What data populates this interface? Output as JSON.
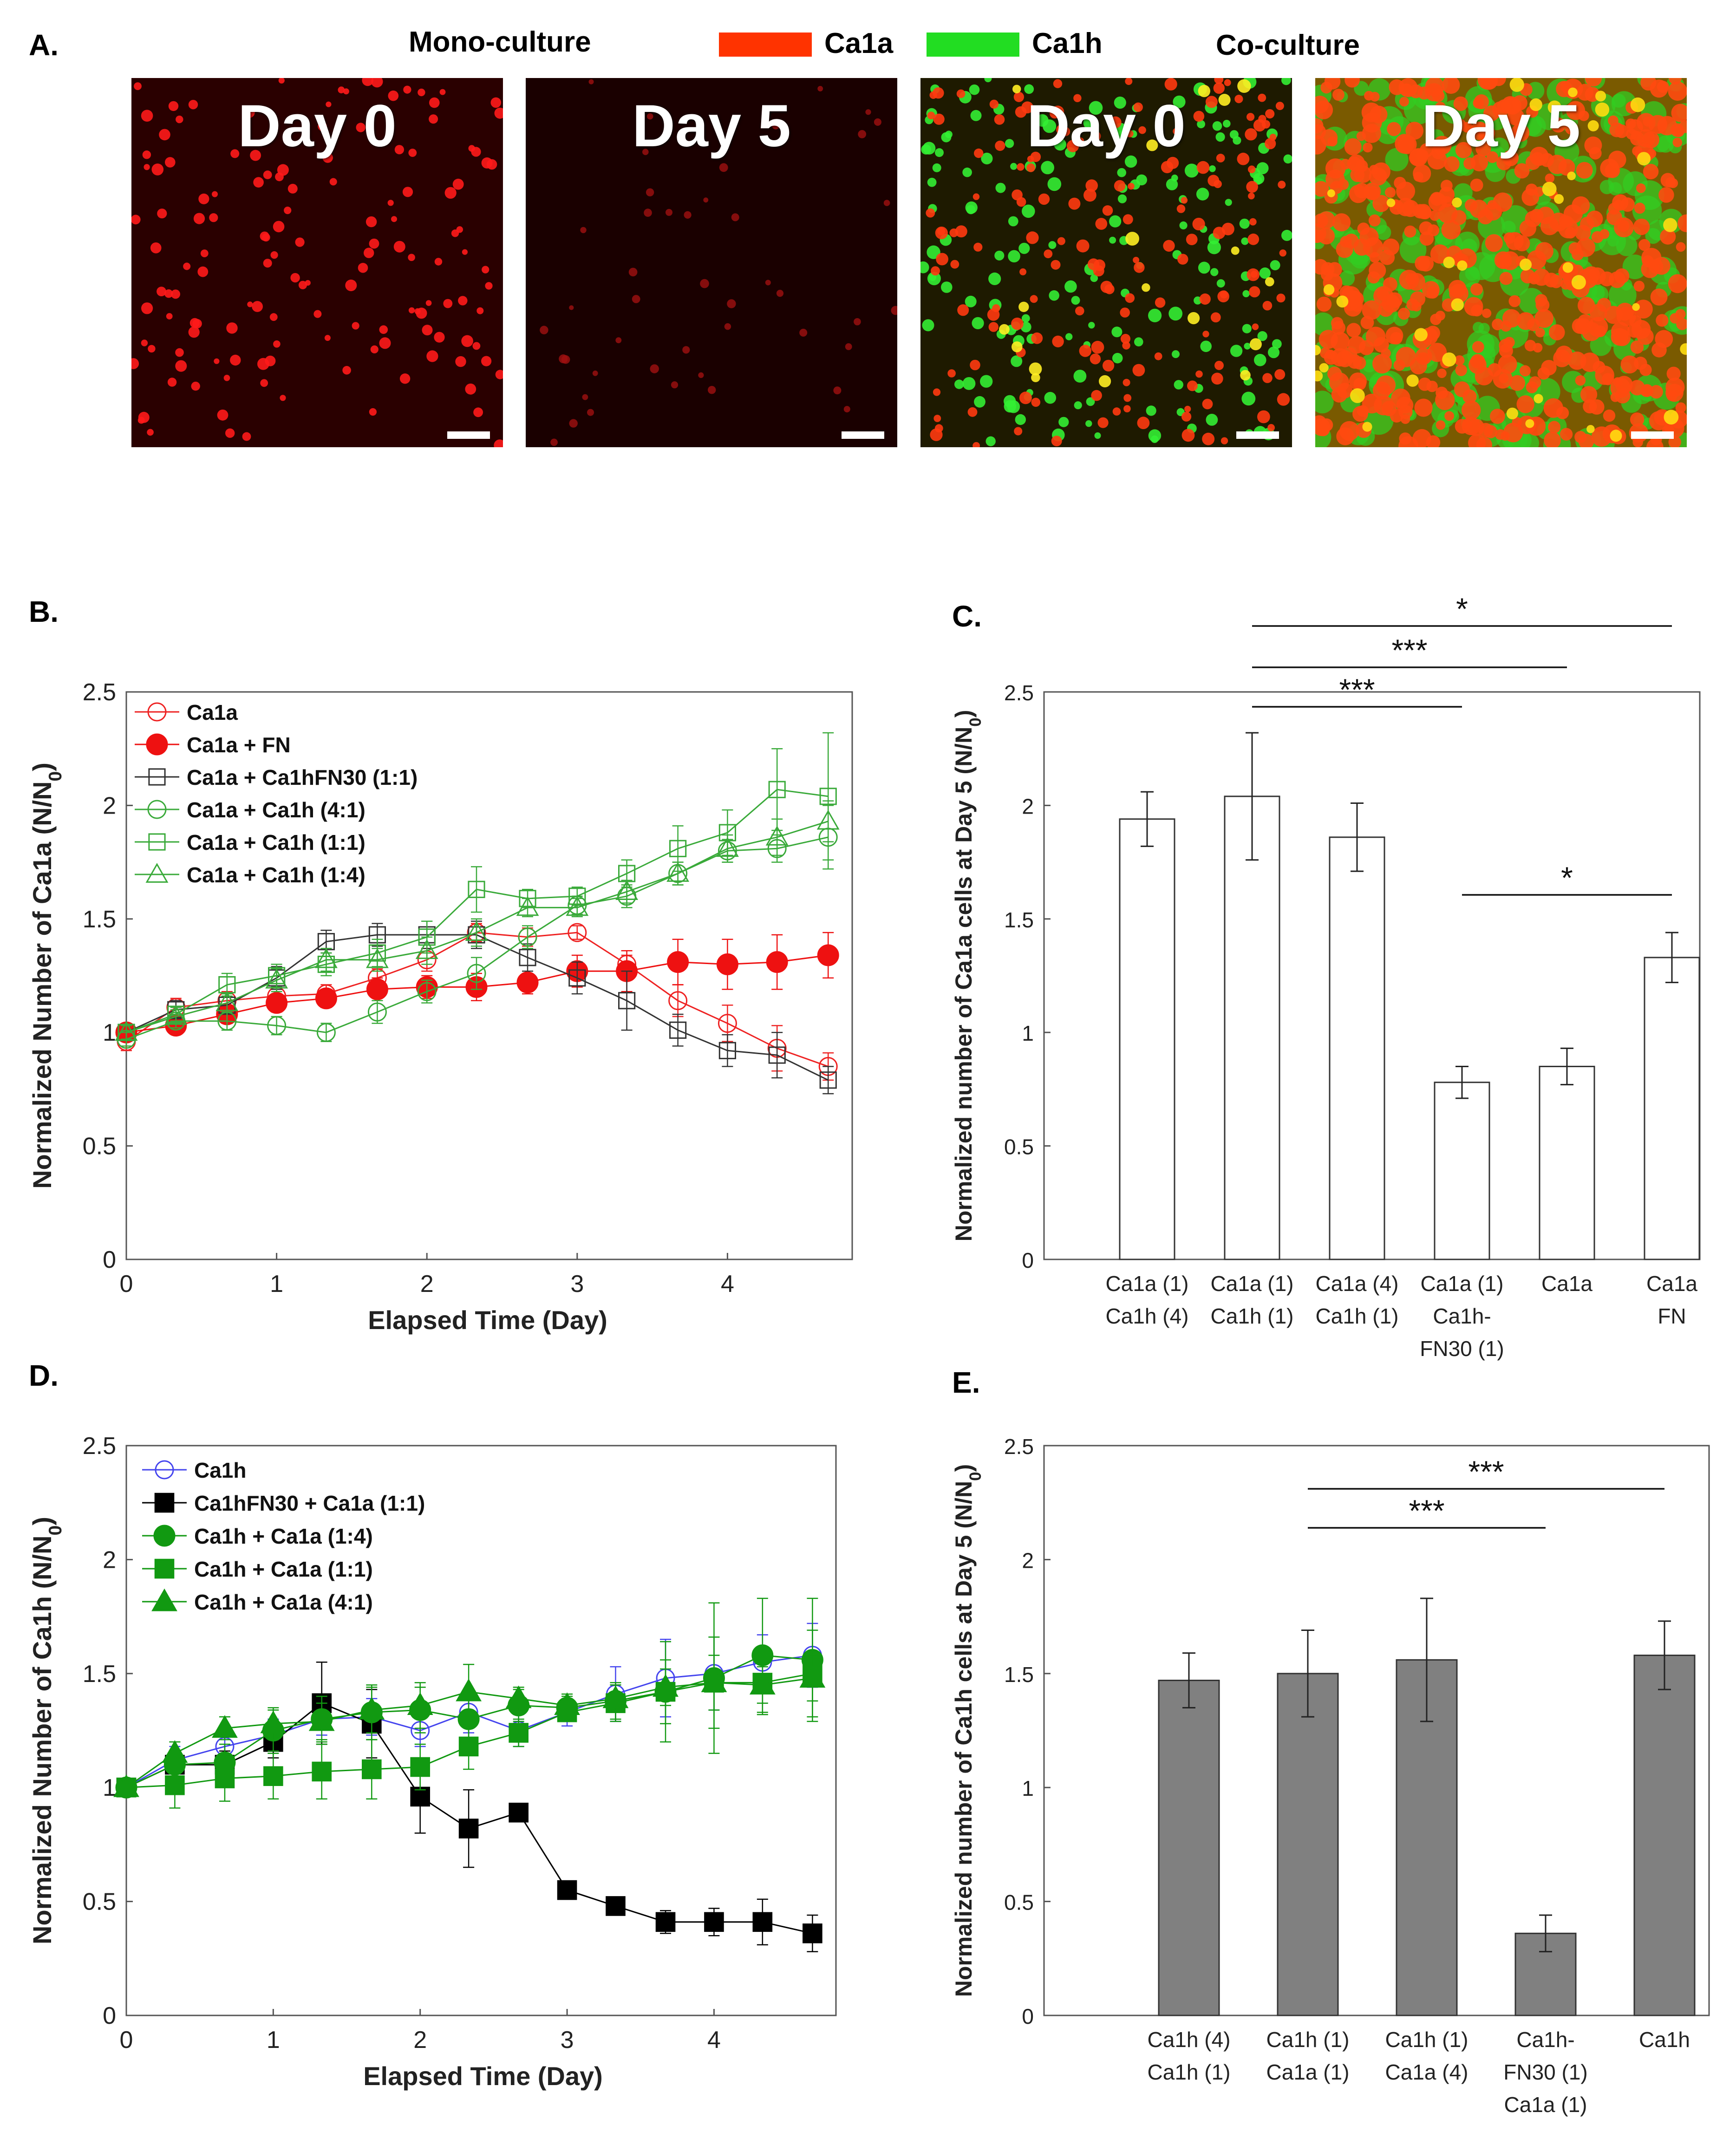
{
  "panels": {
    "a": {
      "letter": "A.",
      "mono_label": "Mono-culture",
      "co_label": "Co-culture",
      "legend": [
        {
          "label": "Ca1a",
          "color": "#ff3300"
        },
        {
          "label": "Ca1h",
          "color": "#22dd22"
        }
      ],
      "images": [
        {
          "label": "Day 0",
          "culture": "mono"
        },
        {
          "label": "Day 5",
          "culture": "mono"
        },
        {
          "label": "Day 0",
          "culture": "co"
        },
        {
          "label": "Day 5",
          "culture": "co"
        }
      ]
    },
    "b": {
      "letter": "B."
    },
    "c": {
      "letter": "C."
    },
    "d": {
      "letter": "D."
    },
    "e": {
      "letter": "E."
    }
  },
  "chart_data": [
    {
      "id": "B",
      "type": "line",
      "xlabel": "Elapsed Time (Day)",
      "ylabel": "Normalized Number of Ca1a (N/N",
      "ylabel_sub": "0",
      "ylabel_end": ")",
      "xlim": [
        0,
        4.83
      ],
      "ylim": [
        0,
        2.5
      ],
      "xticks": [
        0,
        1,
        2,
        3,
        4
      ],
      "yticks": [
        0,
        0.5,
        1,
        1.5,
        2,
        2.5
      ],
      "legend_position": "top-left",
      "x": [
        0,
        0.33,
        0.67,
        1,
        1.33,
        1.67,
        2,
        2.33,
        2.67,
        3,
        3.33,
        3.67,
        4,
        4.33,
        4.67
      ],
      "series": [
        {
          "name": "Ca1a",
          "marker": "circle",
          "fill": false,
          "color": "#ee2222",
          "values": [
            0.96,
            1.11,
            1.14,
            1.16,
            1.17,
            1.24,
            1.32,
            1.44,
            1.42,
            1.44,
            1.3,
            1.14,
            1.04,
            0.93,
            0.85
          ],
          "err": [
            0.04,
            0.04,
            0.04,
            0.04,
            0.04,
            0.04,
            0.05,
            0.04,
            0.04,
            0.03,
            0.04,
            0.07,
            0.08,
            0.1,
            0.06
          ]
        },
        {
          "name": "Ca1a + FN",
          "marker": "circle",
          "fill": true,
          "color": "#ee1111",
          "values": [
            1.0,
            1.03,
            1.08,
            1.13,
            1.15,
            1.19,
            1.2,
            1.2,
            1.22,
            1.27,
            1.27,
            1.31,
            1.3,
            1.31,
            1.34
          ],
          "err": [
            0.03,
            0.03,
            0.04,
            0.04,
            0.04,
            0.05,
            0.05,
            0.06,
            0.05,
            0.07,
            0.09,
            0.1,
            0.11,
            0.12,
            0.1
          ]
        },
        {
          "name": "Ca1a + Ca1hFN30 (1:1)",
          "marker": "square",
          "fill": false,
          "color": "#333333",
          "values": [
            1.0,
            1.1,
            1.12,
            1.24,
            1.4,
            1.43,
            1.43,
            1.43,
            1.33,
            1.24,
            1.14,
            1.01,
            0.92,
            0.9,
            0.79
          ],
          "err": [
            0.03,
            0.04,
            0.04,
            0.05,
            0.05,
            0.05,
            0.06,
            0.06,
            0.06,
            0.07,
            0.13,
            0.07,
            0.07,
            0.1,
            0.06
          ]
        },
        {
          "name": "Ca1a + Ca1h (4:1)",
          "marker": "circle",
          "fill": false,
          "color": "#3aaa3a",
          "values": [
            0.97,
            1.05,
            1.05,
            1.03,
            1.0,
            1.09,
            1.18,
            1.26,
            1.42,
            1.56,
            1.6,
            1.7,
            1.8,
            1.81,
            1.86
          ],
          "err": [
            0.03,
            0.03,
            0.04,
            0.04,
            0.04,
            0.05,
            0.05,
            0.07,
            0.05,
            0.04,
            0.05,
            0.05,
            0.05,
            0.06,
            0.14
          ]
        },
        {
          "name": "Ca1a + Ca1h (1:1)",
          "marker": "square",
          "fill": false,
          "color": "#3aaa3a",
          "values": [
            1.0,
            1.08,
            1.21,
            1.25,
            1.3,
            1.35,
            1.42,
            1.63,
            1.59,
            1.6,
            1.7,
            1.81,
            1.88,
            2.07,
            2.04
          ],
          "err": [
            0.03,
            0.03,
            0.05,
            0.05,
            0.05,
            0.06,
            0.07,
            0.1,
            0.04,
            0.04,
            0.06,
            0.1,
            0.1,
            0.18,
            0.28
          ]
        },
        {
          "name": "Ca1a + Ca1h (1:4)",
          "marker": "triangle",
          "fill": false,
          "color": "#3aaa3a",
          "values": [
            1.0,
            1.07,
            1.13,
            1.23,
            1.32,
            1.32,
            1.36,
            1.44,
            1.55,
            1.55,
            1.62,
            1.7,
            1.81,
            1.86,
            1.93
          ],
          "err": [
            0.03,
            0.03,
            0.04,
            0.05,
            0.05,
            0.05,
            0.06,
            0.06,
            0.04,
            0.04,
            0.05,
            0.05,
            0.06,
            0.08,
            0.09
          ]
        }
      ]
    },
    {
      "id": "C",
      "type": "bar",
      "ylabel": "Normalized number of Ca1a cells at Day 5 (N/N",
      "ylabel_sub": "0",
      "ylabel_end": ")",
      "ylim": [
        0,
        2.5
      ],
      "yticks": [
        0,
        0.5,
        1,
        1.5,
        2,
        2.5
      ],
      "categories": [
        [
          "Ca1a (1)",
          "Ca1h (4)"
        ],
        [
          "Ca1a (1)",
          "Ca1h (1)"
        ],
        [
          "Ca1a (4)",
          "Ca1h (1)"
        ],
        [
          "Ca1a (1)",
          "Ca1h-",
          "FN30 (1)"
        ],
        [
          "Ca1a"
        ],
        [
          "Ca1a",
          "FN"
        ]
      ],
      "values": [
        1.94,
        2.04,
        1.86,
        0.78,
        0.85,
        1.33
      ],
      "err": [
        0.12,
        0.28,
        0.15,
        0.07,
        0.08,
        0.11
      ],
      "bar_color": "#ffffff",
      "significance": [
        {
          "from": 1,
          "to": 5,
          "label": "*"
        },
        {
          "from": 1,
          "to": 4,
          "label": "***"
        },
        {
          "from": 1,
          "to": 3,
          "label": "***"
        },
        {
          "from": 3,
          "to": 5,
          "label": "*"
        }
      ]
    },
    {
      "id": "D",
      "type": "line",
      "xlabel": "Elapsed Time (Day)",
      "ylabel": "Normalized Number of Ca1h (N/N",
      "ylabel_sub": "0",
      "ylabel_end": ")",
      "xlim": [
        0,
        4.83
      ],
      "ylim": [
        0,
        2.5
      ],
      "xticks": [
        0,
        1,
        2,
        3,
        4
      ],
      "yticks": [
        0,
        0.5,
        1,
        1.5,
        2,
        2.5
      ],
      "legend_position": "top-left",
      "x": [
        0,
        0.33,
        0.67,
        1,
        1.33,
        1.67,
        2,
        2.33,
        2.67,
        3,
        3.33,
        3.67,
        4,
        4.33,
        4.67
      ],
      "series": [
        {
          "name": "Ca1h",
          "marker": "circle",
          "fill": false,
          "color": "#4444ee",
          "values": [
            1.0,
            1.12,
            1.18,
            1.23,
            1.3,
            1.31,
            1.25,
            1.33,
            1.25,
            1.33,
            1.41,
            1.48,
            1.5,
            1.55,
            1.58
          ],
          "err": [
            0.04,
            0.06,
            0.06,
            0.07,
            0.07,
            0.08,
            0.07,
            0.09,
            0.07,
            0.06,
            0.12,
            0.17,
            0.16,
            0.12,
            0.14
          ]
        },
        {
          "name": "Ca1hFN30 + Ca1a (1:1)",
          "marker": "square",
          "fill": true,
          "color": "#000000",
          "values": [
            1.0,
            1.1,
            1.1,
            1.2,
            1.37,
            1.28,
            0.96,
            0.82,
            0.89,
            0.55,
            0.48,
            0.41,
            0.41,
            0.41,
            0.36
          ],
          "err": [
            0.03,
            0.05,
            0.06,
            0.07,
            0.18,
            0.15,
            0.16,
            0.17,
            0.02,
            0.02,
            0.02,
            0.05,
            0.06,
            0.1,
            0.08
          ]
        },
        {
          "name": "Ca1h + Ca1a (1:4)",
          "marker": "circle",
          "fill": true,
          "color": "#119911",
          "values": [
            1.0,
            1.1,
            1.11,
            1.25,
            1.3,
            1.33,
            1.34,
            1.3,
            1.36,
            1.35,
            1.38,
            1.42,
            1.48,
            1.58,
            1.56
          ],
          "err": [
            0.03,
            0.06,
            0.08,
            0.09,
            0.1,
            0.12,
            0.1,
            0.12,
            0.07,
            0.06,
            0.08,
            0.22,
            0.33,
            0.25,
            0.27
          ]
        },
        {
          "name": "Ca1h + Ca1a (1:1)",
          "marker": "square",
          "fill": true,
          "color": "#119911",
          "values": [
            1.0,
            1.01,
            1.04,
            1.05,
            1.07,
            1.08,
            1.09,
            1.18,
            1.24,
            1.33,
            1.37,
            1.42,
            1.46,
            1.46,
            1.5
          ],
          "err": [
            0.03,
            0.1,
            0.1,
            0.1,
            0.12,
            0.13,
            0.1,
            0.1,
            0.06,
            0.04,
            0.08,
            0.14,
            0.2,
            0.14,
            0.19
          ]
        },
        {
          "name": "Ca1h + Ca1a (4:1)",
          "marker": "triangle",
          "fill": true,
          "color": "#119911",
          "values": [
            1.0,
            1.15,
            1.26,
            1.28,
            1.29,
            1.34,
            1.36,
            1.42,
            1.39,
            1.36,
            1.39,
            1.44,
            1.46,
            1.45,
            1.48
          ],
          "err": [
            0.03,
            0.05,
            0.05,
            0.07,
            0.08,
            0.1,
            0.1,
            0.12,
            0.05,
            0.04,
            0.06,
            0.08,
            0.12,
            0.08,
            0.1
          ]
        }
      ]
    },
    {
      "id": "E",
      "type": "bar",
      "ylabel": "Normalized number of Ca1h cells at Day 5 (N/N",
      "ylabel_sub": "0",
      "ylabel_end": ")",
      "ylim": [
        0,
        2.5
      ],
      "yticks": [
        0,
        0.5,
        1,
        1.5,
        2,
        2.5
      ],
      "categories": [
        [
          "Ca1h (4)",
          "Ca1h (1)"
        ],
        [
          "Ca1h (1)",
          "Ca1a (1)"
        ],
        [
          "Ca1h (1)",
          "Ca1a (4)"
        ],
        [
          "Ca1h-",
          "FN30 (1)",
          "Ca1a (1)"
        ],
        [
          "Ca1h"
        ]
      ],
      "values": [
        1.47,
        1.5,
        1.56,
        0.36,
        1.58
      ],
      "err": [
        0.12,
        0.19,
        0.27,
        0.08,
        0.15
      ],
      "bar_color": "#808080",
      "significance": [
        {
          "from": 1,
          "to": 4,
          "label": "***"
        },
        {
          "from": 1,
          "to": 3,
          "label": "***"
        }
      ]
    }
  ]
}
